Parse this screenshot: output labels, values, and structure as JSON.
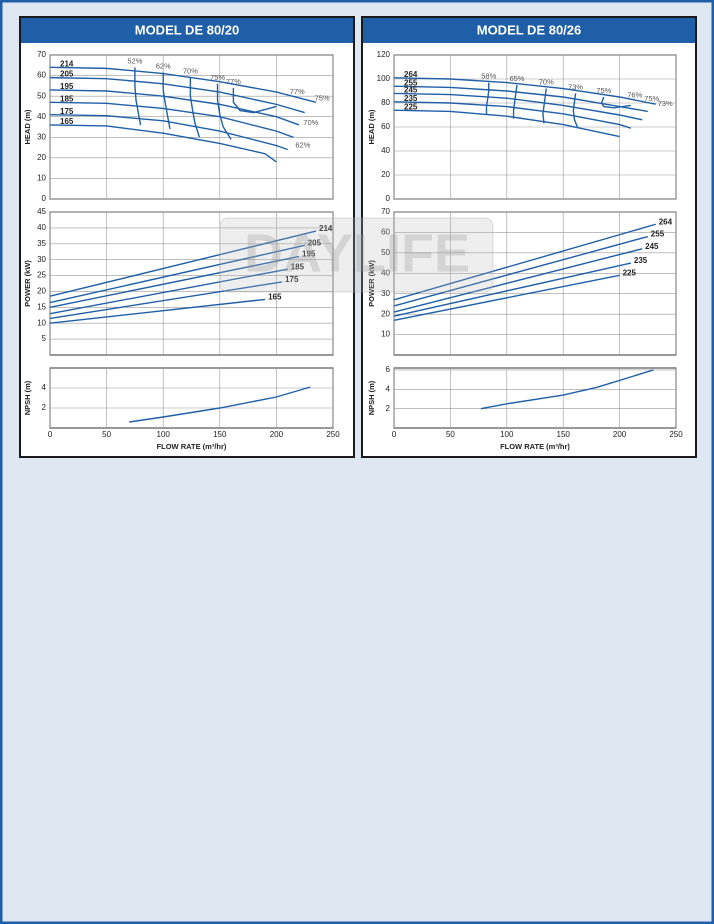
{
  "panels": [
    {
      "title": "MODEL DE 80/20"
    },
    {
      "title": "MODEL DE 80/26"
    }
  ],
  "watermark": "DAYLIFE",
  "chart_data": [
    {
      "type": "line",
      "ylabel": "HEAD (m)",
      "xlim": [
        0,
        250
      ],
      "xticks": [
        0,
        50,
        100,
        150,
        200,
        250
      ],
      "ylim": [
        0,
        70
      ],
      "yticks": [
        0,
        10,
        20,
        30,
        40,
        50,
        60,
        70
      ],
      "grid": true,
      "label_at": "start",
      "color": "#1f5fa8",
      "series": [
        {
          "name": "214",
          "x": [
            0,
            50,
            100,
            150,
            200,
            235
          ],
          "values": [
            64,
            63.5,
            61,
            57,
            52,
            47
          ]
        },
        {
          "name": "205",
          "x": [
            0,
            50,
            100,
            150,
            200,
            225
          ],
          "values": [
            59,
            58.5,
            56,
            52,
            46,
            42
          ]
        },
        {
          "name": "195",
          "x": [
            0,
            50,
            100,
            150,
            200,
            220
          ],
          "values": [
            53,
            52.5,
            50,
            46,
            40,
            36
          ]
        },
        {
          "name": "185",
          "x": [
            0,
            50,
            100,
            150,
            200,
            215
          ],
          "values": [
            47,
            46.5,
            44,
            40,
            33,
            30
          ]
        },
        {
          "name": "175",
          "x": [
            0,
            50,
            100,
            150,
            200,
            210
          ],
          "values": [
            41,
            40.5,
            38,
            33,
            26,
            24
          ]
        },
        {
          "name": "165",
          "x": [
            0,
            50,
            100,
            150,
            190,
            200
          ],
          "values": [
            36,
            35.5,
            32,
            27,
            22,
            18
          ]
        }
      ],
      "efficiency": [
        {
          "name": "52%",
          "x": [
            75,
            75,
            76,
            78,
            80
          ],
          "values": [
            64,
            55,
            48,
            42,
            36
          ]
        },
        {
          "name": "62%",
          "x": [
            100,
            100,
            102,
            104,
            106
          ],
          "values": [
            61.5,
            53,
            46,
            40,
            34
          ]
        },
        {
          "name": "70%",
          "x": [
            124,
            124,
            126,
            128,
            132
          ],
          "values": [
            59,
            50,
            43,
            37,
            30
          ]
        },
        {
          "name": "75%",
          "x": [
            148,
            148,
            150,
            153,
            160
          ],
          "values": [
            56,
            48,
            41,
            35,
            29
          ]
        },
        {
          "name": "77%",
          "x": [
            162,
            162,
            168,
            180,
            200
          ],
          "values": [
            54,
            47,
            43,
            42,
            45
          ]
        }
      ],
      "annotations": [
        {
          "text": "77%",
          "x": 210,
          "y": 50
        },
        {
          "text": "75%",
          "x": 232,
          "y": 47
        },
        {
          "text": "70%",
          "x": 222,
          "y": 35
        },
        {
          "text": "62%",
          "x": 215,
          "y": 24
        }
      ]
    },
    {
      "type": "line",
      "ylabel": "POWER (kW)",
      "xlim": [
        0,
        250
      ],
      "xticks": [
        0,
        50,
        100,
        150,
        200,
        250
      ],
      "ylim": [
        0,
        45
      ],
      "yticks": [
        5,
        10,
        15,
        20,
        25,
        30,
        35,
        40,
        45
      ],
      "grid": true,
      "label_at": "end",
      "color": "#1f5fa8",
      "series": [
        {
          "name": "214",
          "x": [
            0,
            235
          ],
          "values": [
            18.5,
            39
          ]
        },
        {
          "name": "205",
          "x": [
            0,
            225
          ],
          "values": [
            16.5,
            34.5
          ]
        },
        {
          "name": "195",
          "x": [
            0,
            220
          ],
          "values": [
            15,
            31
          ]
        },
        {
          "name": "185",
          "x": [
            0,
            210
          ],
          "values": [
            13,
            27
          ]
        },
        {
          "name": "175",
          "x": [
            0,
            205
          ],
          "values": [
            11.5,
            23
          ]
        },
        {
          "name": "165",
          "x": [
            0,
            190
          ],
          "values": [
            10,
            17.5
          ]
        }
      ]
    },
    {
      "type": "line",
      "ylabel": "NPSH (m)",
      "xlabel": "FLOW RATE (m³/hr)",
      "xlim": [
        0,
        250
      ],
      "xticks": [
        0,
        50,
        100,
        150,
        200,
        250
      ],
      "ylim": [
        0,
        6
      ],
      "yticks": [
        2,
        4
      ],
      "grid": true,
      "xtick_labels": true,
      "color": "#1f5fa8",
      "series": [
        {
          "x": [
            70,
            100,
            150,
            200,
            230
          ],
          "values": [
            0.6,
            1.1,
            2,
            3.1,
            4.1
          ]
        }
      ]
    },
    {
      "type": "line",
      "ylabel": "HEAD (m)",
      "xlim": [
        0,
        250
      ],
      "xticks": [
        0,
        50,
        100,
        150,
        200,
        250
      ],
      "ylim": [
        0,
        120
      ],
      "yticks": [
        0,
        20,
        40,
        60,
        80,
        100,
        120
      ],
      "grid": true,
      "label_at": "start",
      "color": "#1f5fa8",
      "series": [
        {
          "name": "264",
          "x": [
            0,
            50,
            100,
            150,
            200,
            232
          ],
          "values": [
            101,
            100,
            97,
            92,
            85,
            79
          ]
        },
        {
          "name": "255",
          "x": [
            0,
            50,
            100,
            150,
            200,
            225
          ],
          "values": [
            94,
            93,
            90,
            85,
            77,
            73
          ]
        },
        {
          "name": "245",
          "x": [
            0,
            50,
            100,
            150,
            200,
            220
          ],
          "values": [
            88,
            87,
            84,
            78,
            70,
            66
          ]
        },
        {
          "name": "235",
          "x": [
            0,
            50,
            100,
            150,
            200,
            210
          ],
          "values": [
            81,
            80,
            77,
            71,
            62,
            59
          ]
        },
        {
          "name": "225",
          "x": [
            0,
            50,
            100,
            150,
            200
          ],
          "values": [
            74,
            73,
            69,
            62,
            52
          ]
        }
      ],
      "efficiency": [
        {
          "name": "58%",
          "x": [
            84,
            84,
            83,
            82,
            82
          ],
          "values": [
            97,
            90,
            83,
            77,
            70
          ]
        },
        {
          "name": "65%",
          "x": [
            109,
            108,
            107,
            106,
            106
          ],
          "values": [
            95,
            88,
            81,
            74,
            67
          ]
        },
        {
          "name": "70%",
          "x": [
            135,
            134,
            133,
            132,
            133
          ],
          "values": [
            92,
            85,
            78,
            71,
            63
          ]
        },
        {
          "name": "73%",
          "x": [
            161,
            160,
            159,
            160,
            163
          ],
          "values": [
            88,
            81,
            74,
            66,
            59
          ]
        },
        {
          "name": "75%",
          "x": [
            186,
            184,
            186,
            195,
            210
          ],
          "values": [
            85,
            80,
            77,
            76,
            78
          ]
        }
      ],
      "annotations": [
        {
          "text": "76%",
          "x": 205,
          "y": 83
        },
        {
          "text": "75%",
          "x": 220,
          "y": 80
        },
        {
          "text": "73%",
          "x": 232,
          "y": 76
        }
      ]
    },
    {
      "type": "line",
      "ylabel": "POWER (kW)",
      "xlim": [
        0,
        250
      ],
      "xticks": [
        0,
        50,
        100,
        150,
        200,
        250
      ],
      "ylim": [
        0,
        70
      ],
      "yticks": [
        10,
        20,
        30,
        40,
        50,
        60,
        70
      ],
      "grid": true,
      "label_at": "end",
      "color": "#1f5fa8",
      "series": [
        {
          "name": "264",
          "x": [
            0,
            232
          ],
          "values": [
            27,
            64
          ]
        },
        {
          "name": "255",
          "x": [
            0,
            225
          ],
          "values": [
            24,
            58
          ]
        },
        {
          "name": "245",
          "x": [
            0,
            220
          ],
          "values": [
            21,
            52
          ]
        },
        {
          "name": "235",
          "x": [
            0,
            210
          ],
          "values": [
            19,
            45
          ]
        },
        {
          "name": "225",
          "x": [
            0,
            200
          ],
          "values": [
            17,
            39
          ]
        }
      ]
    },
    {
      "type": "line",
      "ylabel": "NPSH (m)",
      "xlabel": "FLOW RATE (m³/hr)",
      "xlim": [
        0,
        250
      ],
      "xticks": [
        0,
        50,
        100,
        150,
        200,
        250
      ],
      "ylim": [
        0,
        6.2
      ],
      "yticks": [
        2,
        4,
        6
      ],
      "grid": true,
      "xtick_labels": true,
      "color": "#1f5fa8",
      "series": [
        {
          "x": [
            77,
            100,
            150,
            180,
            230
          ],
          "values": [
            2,
            2.5,
            3.4,
            4.2,
            6
          ]
        }
      ]
    }
  ]
}
